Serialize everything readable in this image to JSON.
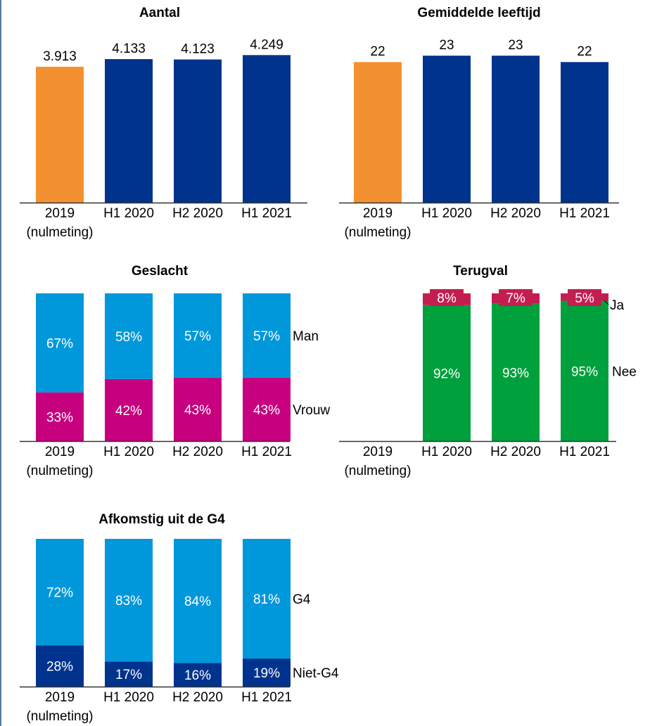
{
  "palette": {
    "orange": "#f39130",
    "navy": "#00338d",
    "lightblue": "#0098db",
    "magenta": "#c6007e",
    "green": "#00a03c",
    "crimson": "#c41e50",
    "frame": "#1f4e8c",
    "text": "#000000"
  },
  "chart_data": [
    {
      "id": "aantal",
      "type": "bar",
      "title": "Aantal",
      "categories": [
        "2019\n(nulmeting)",
        "H1 2020",
        "H2 2020",
        "H1 2021"
      ],
      "values": [
        3913,
        4133,
        4123,
        4249
      ],
      "labels": [
        "3.913",
        "4.133",
        "4.123",
        "4.249"
      ],
      "colors": [
        "orange",
        "navy",
        "navy",
        "navy"
      ],
      "ylim": [
        0,
        4600
      ]
    },
    {
      "id": "leeftijd",
      "type": "bar",
      "title": "Gemiddelde leeftijd",
      "categories": [
        "2019\n(nulmeting)",
        "H1 2020",
        "H2 2020",
        "H1 2021"
      ],
      "values": [
        22,
        23,
        23,
        22
      ],
      "labels": [
        "22",
        "23",
        "23",
        "22"
      ],
      "colors": [
        "orange",
        "navy",
        "navy",
        "navy"
      ],
      "ylim": [
        0,
        25
      ]
    },
    {
      "id": "geslacht",
      "type": "bar",
      "stacked": true,
      "title": "Geslacht",
      "categories": [
        "2019\n(nulmeting)",
        "H1 2020",
        "H2 2020",
        "H1 2021"
      ],
      "series": [
        {
          "name": "Vrouw",
          "color": "magenta",
          "values": [
            33,
            42,
            43,
            43
          ],
          "labels": [
            "33%",
            "42%",
            "43%",
            "43%"
          ]
        },
        {
          "name": "Man",
          "color": "lightblue",
          "values": [
            67,
            58,
            57,
            57
          ],
          "labels": [
            "67%",
            "58%",
            "57%",
            "57%"
          ]
        }
      ],
      "ylim": [
        0,
        100
      ]
    },
    {
      "id": "terugval",
      "type": "bar",
      "stacked": true,
      "title": "Terugval",
      "categories": [
        "2019\n(nulmeting)",
        "H1 2020",
        "H2 2020",
        "H1 2021"
      ],
      "series": [
        {
          "name": "Nee",
          "color": "green",
          "values": [
            null,
            92,
            93,
            95
          ],
          "labels": [
            "",
            "92%",
            "93%",
            "95%"
          ]
        },
        {
          "name": "Ja",
          "color": "crimson",
          "values": [
            null,
            8,
            7,
            5
          ],
          "labels": [
            "",
            "8%",
            "7%",
            "5%"
          ]
        }
      ],
      "ylim": [
        0,
        100
      ]
    },
    {
      "id": "g4",
      "type": "bar",
      "stacked": true,
      "title": "Afkomstig uit de G4",
      "categories": [
        "2019\n(nulmeting)",
        "H1 2020",
        "H2 2020",
        "H1 2021"
      ],
      "series": [
        {
          "name": "Niet-G4",
          "color": "navy",
          "values": [
            28,
            17,
            16,
            19
          ],
          "labels": [
            "28%",
            "17%",
            "16%",
            "19%"
          ]
        },
        {
          "name": "G4",
          "color": "lightblue",
          "values": [
            72,
            83,
            84,
            81
          ],
          "labels": [
            "72%",
            "83%",
            "84%",
            "81%"
          ]
        }
      ],
      "ylim": [
        0,
        100
      ]
    }
  ]
}
